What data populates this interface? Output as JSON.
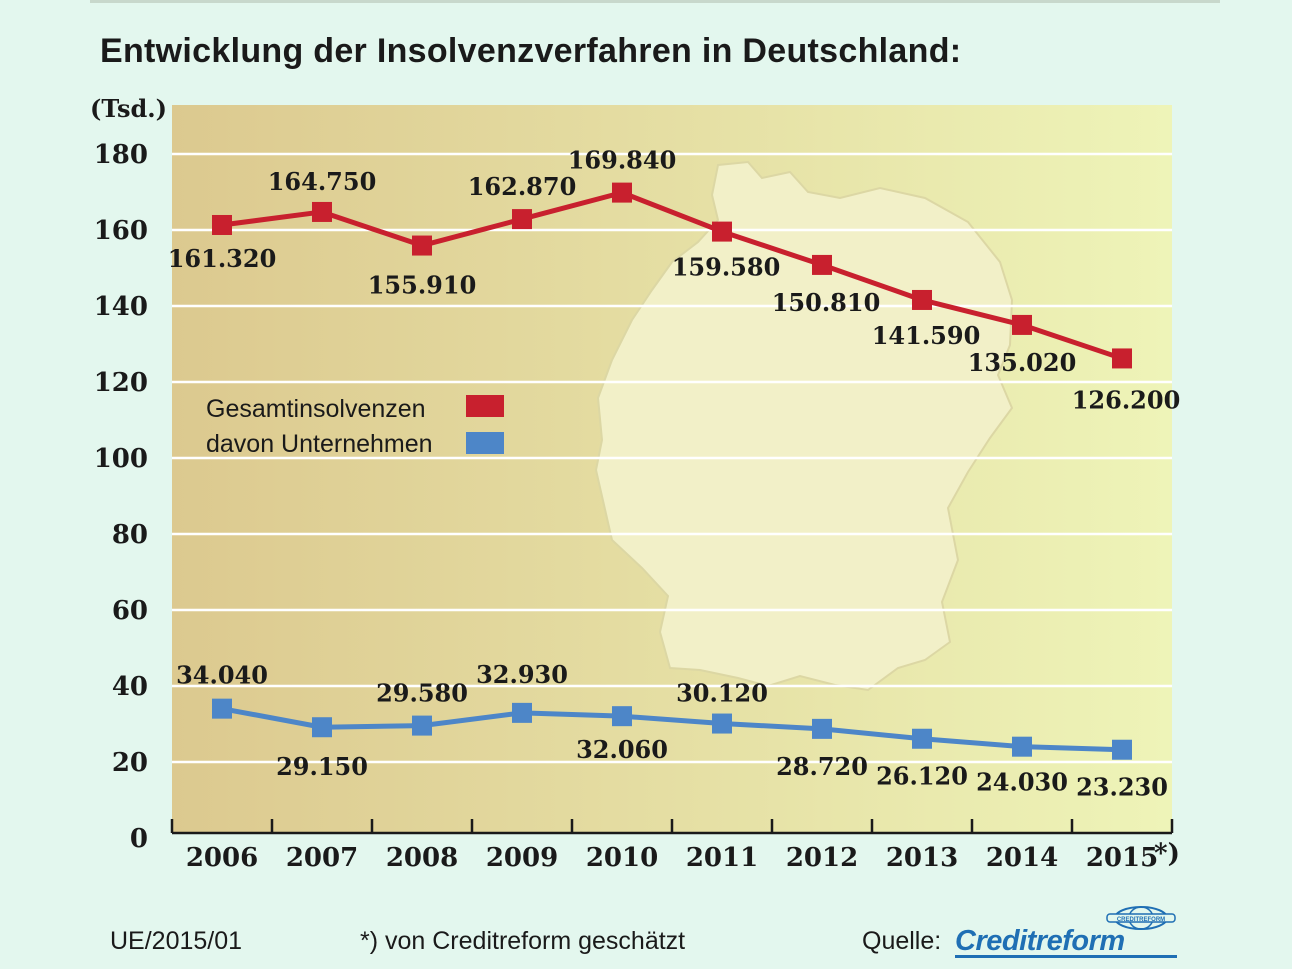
{
  "chart_data": {
    "type": "line",
    "title": "Entwicklung der Insolvenzverfahren in Deutschland:",
    "ylabel": "(Tsd.)",
    "xlabel": "",
    "categories": [
      "2006",
      "2007",
      "2008",
      "2009",
      "2010",
      "2011",
      "2012",
      "2013",
      "2014",
      "2015"
    ],
    "x_last_suffix": "*)",
    "ylim": [
      0,
      180
    ],
    "yticks": [
      "0",
      "20",
      "40",
      "60",
      "80",
      "100",
      "120",
      "140",
      "160",
      "180"
    ],
    "grid": true,
    "legend_position": "left",
    "series": [
      {
        "name": "Gesamtinsolvenzen",
        "color": "#c8202e",
        "values": [
          161.32,
          164.75,
          155.91,
          162.87,
          169.84,
          159.58,
          150.81,
          141.59,
          135.02,
          126.2
        ],
        "labels": [
          "161.320",
          "164.750",
          "155.910",
          "162.870",
          "169.840",
          "159.580",
          "150.810",
          "141.590",
          "135.020",
          "126.200"
        ]
      },
      {
        "name": "davon Unternehmen",
        "color": "#4d86c8",
        "values": [
          34.04,
          29.15,
          29.58,
          32.93,
          32.06,
          30.12,
          28.72,
          26.12,
          24.03,
          23.23
        ],
        "labels": [
          "34.040",
          "29.150",
          "29.580",
          "32.930",
          "32.060",
          "30.120",
          "28.720",
          "26.120",
          "24.030",
          "23.230"
        ]
      }
    ]
  },
  "footer": {
    "code": "UE/2015/01",
    "note": "*) von Creditreform geschätzt",
    "source_label": "Quelle:",
    "logo_text": "Creditreform",
    "logo_seal_text": "CREDITREFORM"
  },
  "colors": {
    "background": "#e3f7ee",
    "plot_left": "#dcc98f",
    "plot_right": "#eef4b8",
    "grid": "#ffffff",
    "map": "#f2f0c8",
    "brand": "#1f6fb4"
  }
}
